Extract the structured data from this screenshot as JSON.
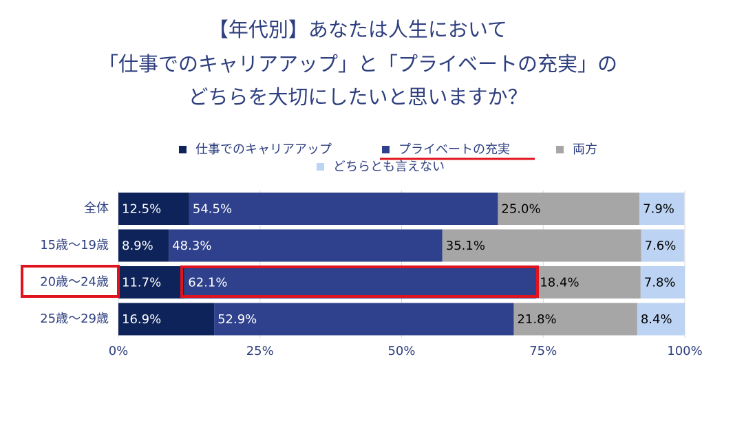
{
  "chart_data": {
    "type": "stacked-bar",
    "orientation": "horizontal",
    "title": [
      "【年代別】あなたは人生において",
      "「仕事でのキャリアアップ」と「プライベートの充実」の",
      "どちらを大切にしたいと思いますか？"
    ],
    "categories": [
      "全体",
      "15歳～19歳",
      "20歳～24歳",
      "25歳～29歳"
    ],
    "series": [
      {
        "name": "仕事でのキャリアアップ",
        "color": "#0e2359",
        "label_color": "#ffffff",
        "values": [
          12.5,
          8.9,
          11.7,
          16.9
        ],
        "value_labels": [
          "12.5%",
          "8.9%",
          "11.7%",
          "16.9%"
        ]
      },
      {
        "name": "プライベートの充実",
        "color": "#2f418c",
        "label_color": "#ffffff",
        "values": [
          54.5,
          48.3,
          62.1,
          52.9
        ],
        "value_labels": [
          "54.5%",
          "48.3%",
          "62.1%",
          "52.9%"
        ]
      },
      {
        "name": "両方",
        "color": "#a6a6a6",
        "label_color": "#000000",
        "values": [
          25.0,
          35.1,
          18.4,
          21.8
        ],
        "value_labels": [
          "25.0%",
          "35.1%",
          "18.4%",
          "21.8%"
        ]
      },
      {
        "name": "どちらとも言えない",
        "color": "#bcd3f3",
        "label_color": "#000000",
        "values": [
          7.9,
          7.6,
          7.8,
          8.4
        ],
        "value_labels": [
          "7.9%",
          "7.6%",
          "7.8%",
          "8.4%"
        ]
      }
    ],
    "xlim": [
      0,
      100
    ],
    "xticks": [
      {
        "value": 0,
        "label": "0%"
      },
      {
        "value": 25,
        "label": "25%"
      },
      {
        "value": 50,
        "label": "50%"
      },
      {
        "value": 75,
        "label": "75%"
      },
      {
        "value": 100,
        "label": "100%"
      }
    ],
    "grid": true,
    "legend": "top"
  }
}
